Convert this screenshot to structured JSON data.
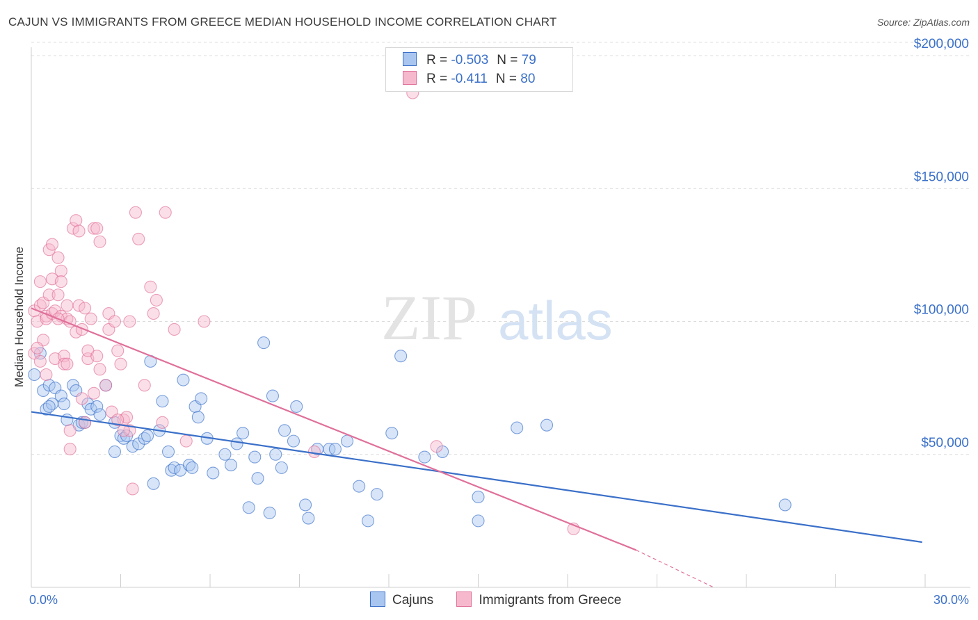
{
  "title": "CAJUN VS IMMIGRANTS FROM GREECE MEDIAN HOUSEHOLD INCOME CORRELATION CHART",
  "source": "Source: ZipAtlas.com",
  "watermark": {
    "zip": "ZIP",
    "atlas": "atlas"
  },
  "legend": {
    "r_label": "R =",
    "n_label": "N =",
    "rows": [
      {
        "r": "-0.503",
        "n": "79"
      },
      {
        "r": "-0.411",
        "n": "80"
      }
    ]
  },
  "chart_data": {
    "type": "scatter",
    "title": "CAJUN VS IMMIGRANTS FROM GREECE MEDIAN HOUSEHOLD INCOME CORRELATION CHART",
    "xlabel": "",
    "ylabel": "Median Household Income",
    "xlim": [
      0,
      30
    ],
    "ylim": [
      0,
      200000
    ],
    "x_tick_labels": [
      "0.0%",
      "30.0%"
    ],
    "y_tick_values": [
      50000,
      100000,
      150000,
      200000
    ],
    "y_tick_labels": [
      "$50,000",
      "$100,000",
      "$150,000",
      "$200,000"
    ],
    "grid": true,
    "series": [
      {
        "name": "Cajuns",
        "color": "#3b70c9",
        "fill": "#a9c6f0",
        "r": -0.503,
        "n": 79,
        "trend": {
          "x": [
            0,
            29.9
          ],
          "y": [
            66000,
            17000
          ]
        },
        "points": [
          [
            0.1,
            80000
          ],
          [
            0.4,
            74000
          ],
          [
            0.5,
            67000
          ],
          [
            0.6,
            76000
          ],
          [
            0.7,
            69000
          ],
          [
            0.8,
            75000
          ],
          [
            1.0,
            72000
          ],
          [
            1.1,
            69000
          ],
          [
            1.2,
            63000
          ],
          [
            1.4,
            76000
          ],
          [
            1.5,
            74000
          ],
          [
            1.6,
            61000
          ],
          [
            1.7,
            62000
          ],
          [
            1.8,
            62000
          ],
          [
            1.9,
            69000
          ],
          [
            2.0,
            67000
          ],
          [
            2.2,
            68000
          ],
          [
            2.3,
            65000
          ],
          [
            2.5,
            76000
          ],
          [
            2.8,
            62000
          ],
          [
            2.8,
            51000
          ],
          [
            3.0,
            57000
          ],
          [
            3.1,
            56000
          ],
          [
            3.2,
            57000
          ],
          [
            3.4,
            53000
          ],
          [
            3.6,
            54000
          ],
          [
            3.8,
            56000
          ],
          [
            3.9,
            57000
          ],
          [
            4.0,
            85000
          ],
          [
            4.1,
            39000
          ],
          [
            4.3,
            59000
          ],
          [
            4.4,
            70000
          ],
          [
            4.6,
            51000
          ],
          [
            4.7,
            44000
          ],
          [
            4.8,
            45000
          ],
          [
            5.0,
            44000
          ],
          [
            5.1,
            78000
          ],
          [
            5.3,
            46000
          ],
          [
            5.4,
            45000
          ],
          [
            5.5,
            68000
          ],
          [
            5.6,
            64000
          ],
          [
            5.7,
            71000
          ],
          [
            5.9,
            56000
          ],
          [
            6.1,
            43000
          ],
          [
            6.5,
            50000
          ],
          [
            6.7,
            46000
          ],
          [
            6.9,
            54000
          ],
          [
            7.1,
            58000
          ],
          [
            7.3,
            30000
          ],
          [
            7.5,
            49000
          ],
          [
            7.6,
            41000
          ],
          [
            7.8,
            92000
          ],
          [
            8.0,
            28000
          ],
          [
            8.1,
            72000
          ],
          [
            8.2,
            50000
          ],
          [
            8.4,
            45000
          ],
          [
            8.5,
            59000
          ],
          [
            8.8,
            55000
          ],
          [
            8.9,
            68000
          ],
          [
            9.2,
            31000
          ],
          [
            9.3,
            26000
          ],
          [
            9.6,
            52000
          ],
          [
            10.0,
            52000
          ],
          [
            10.2,
            52000
          ],
          [
            10.6,
            55000
          ],
          [
            11.0,
            38000
          ],
          [
            11.3,
            25000
          ],
          [
            11.6,
            35000
          ],
          [
            12.1,
            58000
          ],
          [
            12.4,
            87000
          ],
          [
            13.2,
            49000
          ],
          [
            13.8,
            51000
          ],
          [
            15.0,
            34000
          ],
          [
            15.0,
            25000
          ],
          [
            16.3,
            60000
          ],
          [
            17.3,
            61000
          ],
          [
            25.3,
            31000
          ],
          [
            0.3,
            88000
          ],
          [
            0.6,
            68000
          ]
        ]
      },
      {
        "name": "Immigrants from Greece",
        "color": "#e0709a",
        "fill": "#f6b8cc",
        "r": -0.411,
        "n": 80,
        "trend": {
          "x": [
            0,
            20.3
          ],
          "y": [
            105000,
            14000
          ]
        },
        "trend_dashed": {
          "x": [
            20.3,
            22.9
          ],
          "y": [
            14000,
            0
          ]
        },
        "points": [
          [
            0.1,
            88000
          ],
          [
            0.1,
            104000
          ],
          [
            0.2,
            100000
          ],
          [
            0.3,
            106000
          ],
          [
            0.3,
            85000
          ],
          [
            0.3,
            115000
          ],
          [
            0.4,
            107000
          ],
          [
            0.4,
            93000
          ],
          [
            0.5,
            102000
          ],
          [
            0.5,
            101000
          ],
          [
            0.6,
            110000
          ],
          [
            0.6,
            127000
          ],
          [
            0.7,
            116000
          ],
          [
            0.7,
            129000
          ],
          [
            0.7,
            103000
          ],
          [
            0.8,
            104000
          ],
          [
            0.8,
            86000
          ],
          [
            0.9,
            124000
          ],
          [
            0.9,
            110000
          ],
          [
            1.0,
            119000
          ],
          [
            1.0,
            102000
          ],
          [
            1.0,
            115000
          ],
          [
            1.1,
            87000
          ],
          [
            1.1,
            84000
          ],
          [
            1.2,
            101000
          ],
          [
            1.2,
            106000
          ],
          [
            1.3,
            100000
          ],
          [
            1.3,
            59000
          ],
          [
            1.3,
            52000
          ],
          [
            1.4,
            135000
          ],
          [
            1.5,
            138000
          ],
          [
            1.5,
            96000
          ],
          [
            1.6,
            134000
          ],
          [
            1.6,
            106000
          ],
          [
            1.7,
            71000
          ],
          [
            1.7,
            97000
          ],
          [
            1.8,
            105000
          ],
          [
            1.9,
            86000
          ],
          [
            1.9,
            89000
          ],
          [
            2.0,
            101000
          ],
          [
            2.1,
            135000
          ],
          [
            2.2,
            135000
          ],
          [
            2.2,
            87000
          ],
          [
            2.3,
            82000
          ],
          [
            2.3,
            130000
          ],
          [
            2.5,
            76000
          ],
          [
            2.6,
            103000
          ],
          [
            2.6,
            97000
          ],
          [
            2.7,
            66000
          ],
          [
            2.8,
            100000
          ],
          [
            2.9,
            89000
          ],
          [
            3.0,
            84000
          ],
          [
            3.1,
            63000
          ],
          [
            3.2,
            64000
          ],
          [
            3.3,
            59000
          ],
          [
            3.3,
            100000
          ],
          [
            3.4,
            37000
          ],
          [
            3.5,
            141000
          ],
          [
            3.6,
            131000
          ],
          [
            3.8,
            76000
          ],
          [
            4.0,
            113000
          ],
          [
            4.1,
            103000
          ],
          [
            4.2,
            108000
          ],
          [
            4.4,
            62000
          ],
          [
            4.5,
            141000
          ],
          [
            4.8,
            97000
          ],
          [
            5.2,
            55000
          ],
          [
            5.8,
            100000
          ],
          [
            9.5,
            51000
          ],
          [
            12.8,
            186000
          ],
          [
            13.6,
            53000
          ],
          [
            0.2,
            90000
          ],
          [
            0.5,
            80000
          ],
          [
            1.2,
            84000
          ],
          [
            2.1,
            73000
          ],
          [
            2.9,
            63000
          ],
          [
            3.1,
            59000
          ],
          [
            1.8,
            62000
          ],
          [
            0.9,
            101000
          ],
          [
            18.2,
            22000
          ]
        ]
      }
    ]
  }
}
